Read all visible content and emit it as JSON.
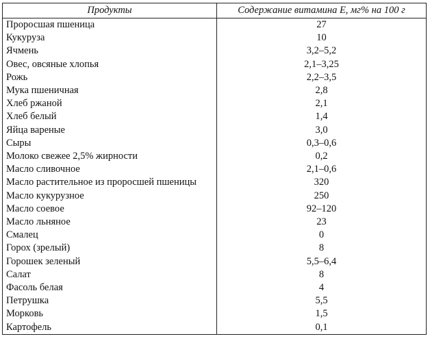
{
  "table": {
    "headers": [
      "Продукты",
      "Содержание витамина Е, мг% на 100 г"
    ],
    "rows": [
      [
        "Проросшая пшеница",
        "27"
      ],
      [
        "Кукуруза",
        "10"
      ],
      [
        "Ячмень",
        "3,2–5,2"
      ],
      [
        "Овес, овсяные хлопья",
        "2,1–3,25"
      ],
      [
        "Рожь",
        "2,2–3,5"
      ],
      [
        "Мука пшеничная",
        "2,8"
      ],
      [
        "Хлеб ржаной",
        "2,1"
      ],
      [
        "Хлеб белый",
        "1,4"
      ],
      [
        "Яйца вареные",
        "3,0"
      ],
      [
        "Сыры",
        "0,3–0,6"
      ],
      [
        "Молоко свежее 2,5% жирности",
        "0,2"
      ],
      [
        "Масло сливочное",
        "2,1–0,6"
      ],
      [
        "Масло растительное из проросшей пшеницы",
        "320"
      ],
      [
        "Масло кукурузное",
        "250"
      ],
      [
        "Масло соевое",
        "92–120"
      ],
      [
        "Масло льняное",
        "23"
      ],
      [
        "Смалец",
        "0"
      ],
      [
        "Горох (зрелый)",
        "8"
      ],
      [
        "Горошек зеленый",
        "5,5–6,4"
      ],
      [
        "Салат",
        "8"
      ],
      [
        "Фасоль белая",
        "4"
      ],
      [
        "Петрушка",
        "5,5"
      ],
      [
        "Морковь",
        "1,5"
      ],
      [
        "Картофель",
        "0,1"
      ]
    ]
  }
}
